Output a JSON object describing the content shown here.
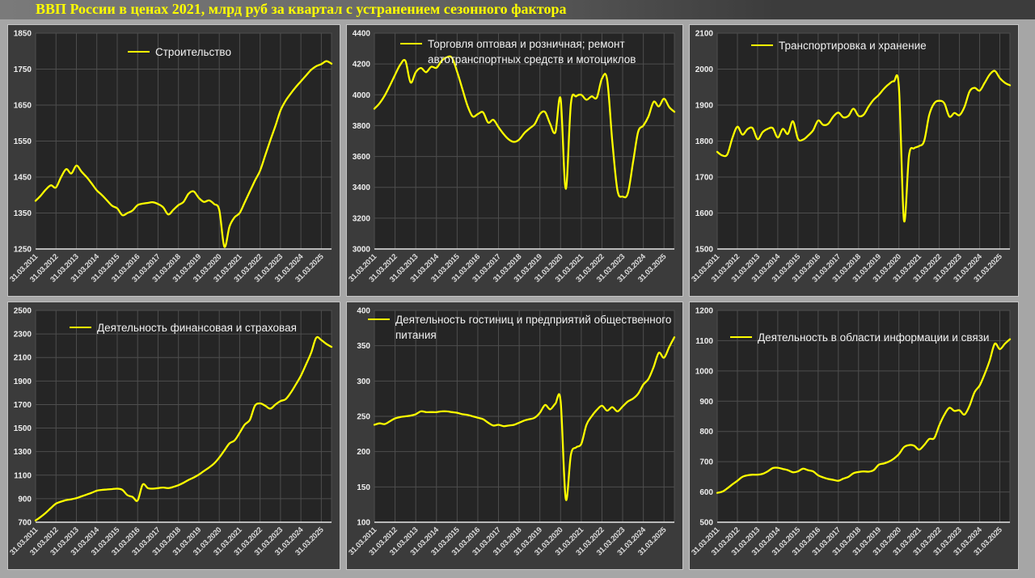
{
  "title": "ВВП России в ценах 2021, млрд руб за квартал с устранением сезонного фактора",
  "colors": {
    "accent_line": "#ffff00",
    "page_bg": "#a6a6a6",
    "panel_bg": "#3b3b3b",
    "plot_bg": "#252525",
    "grid": "#4e4e4e",
    "y_label": "#f0f0f0",
    "x_label": "#dcdcdc",
    "axis_line": "#e6e6e6",
    "title_color": "#ffff00",
    "legend_text": "#f2f2f2"
  },
  "x_tick_labels": [
    "31.03.2011",
    "31.03.2012",
    "31.03.2013",
    "31.03.2014",
    "31.03.2015",
    "31.03.2016",
    "31.03.2017",
    "31.03.2018",
    "31.03.2019",
    "31.03.2020",
    "31.03.2021",
    "31.03.2022",
    "31.03.2023",
    "31.03.2024",
    "31.03.2025"
  ],
  "chart_data": [
    {
      "type": "line",
      "legend_lines": [
        "Строительство"
      ],
      "ylim": [
        1250,
        1850
      ],
      "yticks": [
        1850,
        1750,
        1650,
        1550,
        1450,
        1350,
        1250
      ],
      "x_start": "2011-Q1",
      "x_freq": "quarterly",
      "values": [
        1384,
        1398,
        1415,
        1427,
        1421,
        1450,
        1472,
        1460,
        1482,
        1465,
        1450,
        1432,
        1413,
        1400,
        1385,
        1370,
        1363,
        1344,
        1350,
        1357,
        1372,
        1376,
        1378,
        1380,
        1375,
        1366,
        1346,
        1359,
        1372,
        1381,
        1404,
        1410,
        1392,
        1381,
        1385,
        1375,
        1358,
        1256,
        1312,
        1338,
        1350,
        1380,
        1410,
        1440,
        1468,
        1510,
        1552,
        1592,
        1635,
        1662,
        1682,
        1700,
        1716,
        1732,
        1748,
        1758,
        1764,
        1772,
        1765
      ]
    },
    {
      "type": "line",
      "legend_lines": [
        "Торговля оптовая и розничная; ремонт",
        "автотранспортных средств и мотоциклов"
      ],
      "ylim": [
        3000,
        4400
      ],
      "yticks": [
        4400,
        4200,
        4000,
        3800,
        3600,
        3400,
        3200,
        3000
      ],
      "x_start": "2011-Q1",
      "x_freq": "quarterly",
      "values": [
        3910,
        3945,
        3995,
        4060,
        4130,
        4195,
        4220,
        4080,
        4147,
        4174,
        4147,
        4182,
        4175,
        4220,
        4244,
        4240,
        4150,
        4040,
        3930,
        3860,
        3875,
        3887,
        3820,
        3838,
        3790,
        3745,
        3710,
        3695,
        3710,
        3752,
        3782,
        3810,
        3875,
        3888,
        3810,
        3758,
        3975,
        3390,
        3945,
        3990,
        4000,
        3968,
        3990,
        3982,
        4105,
        4100,
        3700,
        3380,
        3340,
        3360,
        3560,
        3760,
        3800,
        3860,
        3955,
        3925,
        3975,
        3920,
        3890
      ]
    },
    {
      "type": "line",
      "legend_lines": [
        "Транспортировка и хранение"
      ],
      "ylim": [
        1500,
        2100
      ],
      "yticks": [
        2100,
        2000,
        1900,
        1800,
        1700,
        1600,
        1500
      ],
      "x_start": "2011-Q1",
      "x_freq": "quarterly",
      "values": [
        1770,
        1760,
        1763,
        1808,
        1840,
        1818,
        1833,
        1836,
        1805,
        1825,
        1834,
        1836,
        1810,
        1834,
        1820,
        1855,
        1806,
        1804,
        1815,
        1830,
        1857,
        1845,
        1848,
        1868,
        1879,
        1866,
        1870,
        1890,
        1870,
        1873,
        1896,
        1915,
        1928,
        1945,
        1958,
        1966,
        1950,
        1580,
        1760,
        1780,
        1786,
        1800,
        1872,
        1905,
        1912,
        1905,
        1868,
        1878,
        1872,
        1895,
        1938,
        1948,
        1940,
        1962,
        1985,
        1995,
        1975,
        1962,
        1955
      ]
    },
    {
      "type": "line",
      "legend_lines": [
        "Деятельность финансовая и страховая"
      ],
      "ylim": [
        700,
        2500
      ],
      "yticks": [
        2500,
        2300,
        2100,
        1900,
        1700,
        1500,
        1300,
        1100,
        900,
        700
      ],
      "x_start": "2011-Q1",
      "x_freq": "quarterly",
      "values": [
        715,
        745,
        780,
        820,
        858,
        875,
        888,
        895,
        905,
        920,
        935,
        950,
        968,
        975,
        978,
        982,
        985,
        975,
        930,
        915,
        885,
        1020,
        990,
        985,
        990,
        995,
        990,
        1000,
        1015,
        1035,
        1060,
        1080,
        1105,
        1135,
        1165,
        1200,
        1250,
        1310,
        1370,
        1395,
        1460,
        1530,
        1570,
        1690,
        1710,
        1690,
        1665,
        1700,
        1730,
        1745,
        1800,
        1870,
        1945,
        2040,
        2140,
        2268,
        2248,
        2215,
        2190
      ]
    },
    {
      "type": "line",
      "legend_lines": [
        "Деятельность гостиниц и предприятий общественного",
        "питания"
      ],
      "ylim": [
        100,
        400
      ],
      "yticks": [
        400,
        350,
        300,
        250,
        200,
        150,
        100
      ],
      "x_start": "2011-Q1",
      "x_freq": "quarterly",
      "values": [
        238,
        240,
        239,
        243,
        247,
        249,
        250,
        251,
        253,
        257,
        256,
        256,
        256,
        257,
        257,
        256,
        255,
        253,
        252,
        250,
        248,
        246,
        241,
        237,
        238,
        236,
        237,
        238,
        241,
        244,
        246,
        248,
        255,
        266,
        260,
        268,
        272,
        133,
        196,
        206,
        211,
        238,
        250,
        259,
        265,
        258,
        263,
        257,
        264,
        271,
        275,
        282,
        295,
        303,
        320,
        340,
        333,
        348,
        362
      ]
    },
    {
      "type": "line",
      "legend_lines": [
        "Деятельность в области информации и связи"
      ],
      "ylim": [
        500,
        1200
      ],
      "yticks": [
        1200,
        1100,
        1000,
        900,
        800,
        700,
        600,
        500
      ],
      "x_start": "2011-Q1",
      "x_freq": "quarterly",
      "values": [
        597,
        601,
        612,
        625,
        637,
        650,
        655,
        657,
        657,
        660,
        668,
        679,
        680,
        676,
        672,
        665,
        668,
        677,
        672,
        668,
        655,
        648,
        643,
        640,
        637,
        644,
        650,
        662,
        666,
        668,
        667,
        672,
        690,
        694,
        700,
        710,
        725,
        748,
        755,
        753,
        740,
        755,
        775,
        778,
        820,
        855,
        878,
        868,
        870,
        856,
        885,
        930,
        952,
        990,
        1035,
        1090,
        1072,
        1090,
        1105
      ]
    }
  ]
}
